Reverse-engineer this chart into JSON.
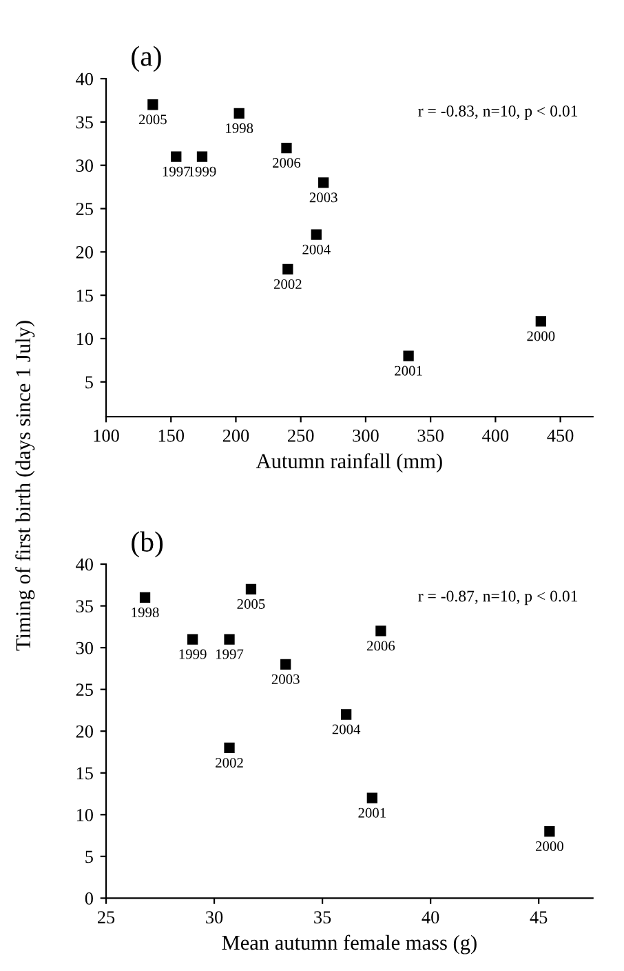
{
  "chart_data": [
    {
      "type": "scatter",
      "title": "(a)",
      "xlabel": "Autumn rainfall (mm)",
      "ylabel": "Timing of first birth (days since 1 July)",
      "marker": "square",
      "grid": false,
      "x": [
        136,
        154,
        174,
        202.5,
        239,
        267.5,
        262,
        240,
        333,
        435
      ],
      "series": [
        {
          "color": "#000000",
          "values": [
            37,
            31,
            31,
            36,
            32,
            28,
            22,
            18,
            8,
            12
          ]
        }
      ],
      "xlim": [
        100,
        475
      ],
      "xticks": [
        100,
        150,
        200,
        250,
        300,
        350,
        400,
        450
      ],
      "ylim": [
        1,
        40
      ],
      "yticks": [
        5,
        10,
        15,
        20,
        25,
        30,
        35,
        40
      ],
      "annotations": [
        "r = -0.83, n=10, p < 0.01",
        {
          "text": "2005",
          "x": 136,
          "y": 37
        },
        {
          "text": "1997",
          "x": 154,
          "y": 31
        },
        {
          "text": "1999",
          "x": 174,
          "y": 31
        },
        {
          "text": "1998",
          "x": 202.5,
          "y": 36
        },
        {
          "text": "2006",
          "x": 239,
          "y": 32
        },
        {
          "text": "2003",
          "x": 267.5,
          "y": 28
        },
        {
          "text": "2004",
          "x": 262,
          "y": 22
        },
        {
          "text": "2002",
          "x": 240,
          "y": 18
        },
        {
          "text": "2001",
          "x": 333,
          "y": 8
        },
        {
          "text": "2000",
          "x": 435,
          "y": 12
        }
      ]
    },
    {
      "type": "scatter",
      "title": "(b)",
      "xlabel": "Mean autumn female mass (g)",
      "marker": "square",
      "grid": false,
      "x": [
        26.8,
        29.0,
        30.7,
        31.7,
        30.7,
        33.3,
        36.1,
        37.7,
        37.3,
        45.5
      ],
      "series": [
        {
          "color": "#000000",
          "values": [
            36,
            31,
            31,
            37,
            18,
            28,
            22,
            32,
            12,
            8
          ]
        }
      ],
      "xlim": [
        25,
        47.5
      ],
      "xticks": [
        25,
        30,
        35,
        40,
        45
      ],
      "ylim": [
        0,
        40
      ],
      "yticks": [
        0,
        5,
        10,
        15,
        20,
        25,
        30,
        35,
        40
      ],
      "annotations": [
        "r = -0.87, n=10, p < 0.01",
        {
          "text": "1998",
          "x": 26.8,
          "y": 36
        },
        {
          "text": "1999",
          "x": 29.0,
          "y": 31
        },
        {
          "text": "1997",
          "x": 30.7,
          "y": 31
        },
        {
          "text": "2005",
          "x": 31.7,
          "y": 37
        },
        {
          "text": "2002",
          "x": 30.7,
          "y": 18
        },
        {
          "text": "2003",
          "x": 33.3,
          "y": 28
        },
        {
          "text": "2004",
          "x": 36.1,
          "y": 22
        },
        {
          "text": "2006",
          "x": 37.7,
          "y": 32
        },
        {
          "text": "2001",
          "x": 37.3,
          "y": 12
        },
        {
          "text": "2000",
          "x": 45.5,
          "y": 8
        }
      ]
    }
  ]
}
